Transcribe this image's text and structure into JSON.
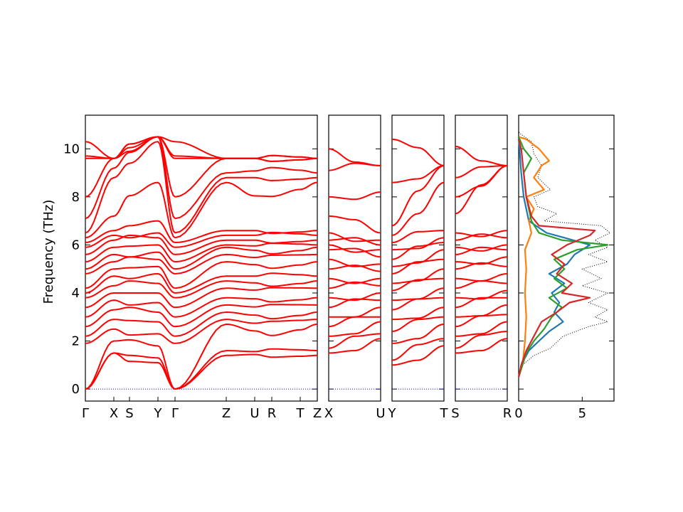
{
  "chart_data": [
    {
      "type": "line",
      "panel": "band-structure-1",
      "ylabel": "Frequency (THz)",
      "ylim": [
        -0.5,
        11.4
      ],
      "yticks": [
        0,
        2,
        4,
        6,
        8,
        10
      ],
      "xticks": [
        "Γ",
        "X",
        "S",
        "Y",
        "Γ",
        "Z",
        "U",
        "R",
        "T",
        "Z"
      ],
      "bands_at_gamma": [
        0,
        0,
        0,
        1.9,
        2.2,
        2.6,
        3.0,
        3.4,
        3.8,
        4.0,
        4.2,
        4.8,
        5.0,
        5.3,
        5.6,
        5.9,
        6.1,
        6.3,
        6.5,
        7.1,
        8.0,
        9.6,
        9.7,
        10.3
      ],
      "bands_at_x": [
        1.5,
        1.5,
        2.0,
        2.5,
        2.9,
        3.3,
        3.7,
        4.0,
        4.3,
        4.7,
        5.0,
        5.3,
        5.6,
        5.9,
        6.2,
        6.4,
        6.6,
        7.2,
        8.8,
        9.2,
        9.6
      ],
      "bands_at_y": [
        1.1,
        1.3,
        1.8,
        2.3,
        2.8,
        3.2,
        3.6,
        4.0,
        4.4,
        4.8,
        5.1,
        5.4,
        5.7,
        6.0,
        6.3,
        6.5,
        7.0,
        8.6,
        10.3,
        10.5
      ],
      "bands_at_z": [
        1.4,
        1.6,
        2.7,
        2.9,
        3.2,
        3.5,
        3.8,
        4.2,
        4.5,
        4.7,
        5.3,
        5.6,
        5.9,
        6.0,
        6.2,
        6.4,
        6.6,
        8.6,
        8.8,
        9.0,
        9.6
      ],
      "band_color": "#ff0000",
      "zero_line_color": "#0000ff"
    },
    {
      "type": "line",
      "panel": "band-structure-2",
      "xticks": [
        "X",
        "U"
      ],
      "bands_at_start": [
        1.5,
        1.7,
        2.2,
        2.6,
        3.0,
        3.4,
        3.8,
        4.2,
        4.6,
        5.0,
        5.4,
        5.8,
        6.0,
        6.2,
        6.5,
        7.2,
        8.0,
        9.1,
        10.0
      ],
      "bands_at_end": [
        2.1,
        2.3,
        2.8,
        3.0,
        3.4,
        3.7,
        4.0,
        4.3,
        4.6,
        4.9,
        5.2,
        5.5,
        5.8,
        6.0,
        6.2,
        6.5,
        8.2,
        9.3
      ],
      "band_color": "#ff0000"
    },
    {
      "type": "line",
      "panel": "band-structure-3",
      "xticks": [
        "Y",
        "T"
      ],
      "bands_at_start": [
        1.0,
        1.2,
        1.9,
        2.4,
        2.9,
        3.3,
        3.7,
        4.1,
        4.4,
        4.8,
        5.1,
        5.4,
        5.8,
        6.1,
        6.4,
        6.8,
        8.6,
        10.4
      ],
      "bands_at_end": [
        1.8,
        2.1,
        2.7,
        3.0,
        3.4,
        3.8,
        4.2,
        4.6,
        5.0,
        5.4,
        5.8,
        6.1,
        6.3,
        6.6,
        8.6,
        9.3
      ],
      "band_color": "#ff0000"
    },
    {
      "type": "line",
      "panel": "band-structure-4",
      "xticks": [
        "S",
        "R"
      ],
      "bands_at_start": [
        1.5,
        1.7,
        2.2,
        2.6,
        3.0,
        3.4,
        3.8,
        4.2,
        4.6,
        5.0,
        5.3,
        5.6,
        5.9,
        6.2,
        6.5,
        7.3,
        8.0,
        8.8,
        10.1
      ],
      "bands_at_end": [
        2.1,
        2.4,
        2.8,
        3.1,
        3.5,
        3.8,
        4.1,
        4.4,
        4.8,
        5.1,
        5.5,
        5.8,
        6.0,
        6.3,
        6.6,
        9.3
      ],
      "band_color": "#ff0000"
    },
    {
      "type": "line",
      "panel": "density-of-states",
      "xlim": [
        0,
        7.5
      ],
      "xticks": [
        "0",
        "5"
      ],
      "ylim": [
        -0.5,
        11.4
      ],
      "series": [
        {
          "color": "#000000",
          "style": "dotted",
          "points": [
            [
              0.0,
              0.5
            ],
            [
              0.3,
              1.0
            ],
            [
              1.2,
              1.4
            ],
            [
              2.5,
              1.7
            ],
            [
              3.5,
              2.2
            ],
            [
              5.5,
              2.6
            ],
            [
              7.0,
              2.8
            ],
            [
              6.0,
              3.0
            ],
            [
              7.0,
              3.3
            ],
            [
              5.5,
              3.6
            ],
            [
              7.0,
              4.0
            ],
            [
              5.0,
              4.3
            ],
            [
              6.5,
              4.6
            ],
            [
              5.0,
              5.0
            ],
            [
              7.0,
              5.3
            ],
            [
              5.5,
              5.6
            ],
            [
              7.0,
              5.9
            ],
            [
              6.0,
              6.2
            ],
            [
              7.2,
              6.5
            ],
            [
              6.5,
              6.8
            ],
            [
              2.0,
              7.0
            ],
            [
              3.0,
              7.3
            ],
            [
              1.5,
              7.6
            ],
            [
              1.2,
              8.0
            ],
            [
              2.5,
              8.3
            ],
            [
              1.5,
              8.8
            ],
            [
              1.8,
              9.3
            ],
            [
              1.2,
              9.8
            ],
            [
              1.0,
              10.3
            ],
            [
              0.2,
              10.6
            ],
            [
              0.0,
              10.7
            ]
          ]
        },
        {
          "color": "#1f77b4",
          "style": "solid",
          "points": [
            [
              0.0,
              0.5
            ],
            [
              0.4,
              1.2
            ],
            [
              0.8,
              1.6
            ],
            [
              1.6,
              2.0
            ],
            [
              2.4,
              2.4
            ],
            [
              3.5,
              2.8
            ],
            [
              2.8,
              3.2
            ],
            [
              3.2,
              3.6
            ],
            [
              2.6,
              4.0
            ],
            [
              3.6,
              4.4
            ],
            [
              2.4,
              4.8
            ],
            [
              3.8,
              5.2
            ],
            [
              4.4,
              5.6
            ],
            [
              5.6,
              6.0
            ],
            [
              3.6,
              6.3
            ],
            [
              2.2,
              6.5
            ],
            [
              0.8,
              7.0
            ],
            [
              0.4,
              8.0
            ],
            [
              0.2,
              9.0
            ],
            [
              0.0,
              10.5
            ]
          ]
        },
        {
          "color": "#ff7f0e",
          "style": "solid",
          "points": [
            [
              0.0,
              0.5
            ],
            [
              0.3,
              1.0
            ],
            [
              0.5,
              2.0
            ],
            [
              0.6,
              3.0
            ],
            [
              0.5,
              4.0
            ],
            [
              0.6,
              5.0
            ],
            [
              0.5,
              5.8
            ],
            [
              1.0,
              6.5
            ],
            [
              0.8,
              7.0
            ],
            [
              1.2,
              7.5
            ],
            [
              0.6,
              8.0
            ],
            [
              2.0,
              8.3
            ],
            [
              1.2,
              8.8
            ],
            [
              1.8,
              9.3
            ],
            [
              2.4,
              9.5
            ],
            [
              1.6,
              10.0
            ],
            [
              0.6,
              10.4
            ],
            [
              0.0,
              10.5
            ]
          ]
        },
        {
          "color": "#2ca02c",
          "style": "solid",
          "points": [
            [
              0.0,
              0.5
            ],
            [
              0.3,
              1.0
            ],
            [
              0.6,
              1.5
            ],
            [
              1.2,
              2.0
            ],
            [
              2.0,
              2.5
            ],
            [
              2.6,
              3.0
            ],
            [
              3.4,
              3.4
            ],
            [
              2.4,
              3.8
            ],
            [
              3.8,
              4.2
            ],
            [
              2.8,
              4.6
            ],
            [
              3.6,
              5.0
            ],
            [
              2.8,
              5.4
            ],
            [
              4.6,
              5.8
            ],
            [
              7.0,
              6.0
            ],
            [
              3.4,
              6.2
            ],
            [
              1.6,
              6.5
            ],
            [
              1.0,
              7.0
            ],
            [
              0.6,
              8.0
            ],
            [
              0.4,
              9.0
            ],
            [
              1.0,
              9.6
            ],
            [
              0.4,
              10.0
            ],
            [
              0.0,
              10.5
            ]
          ]
        },
        {
          "color": "#d62728",
          "style": "solid",
          "points": [
            [
              0.0,
              0.5
            ],
            [
              0.2,
              1.0
            ],
            [
              0.6,
              1.6
            ],
            [
              1.2,
              2.2
            ],
            [
              1.8,
              2.8
            ],
            [
              3.0,
              3.2
            ],
            [
              4.0,
              3.6
            ],
            [
              5.6,
              3.8
            ],
            [
              3.4,
              4.0
            ],
            [
              4.2,
              4.4
            ],
            [
              3.0,
              4.8
            ],
            [
              3.6,
              5.2
            ],
            [
              2.6,
              5.6
            ],
            [
              3.8,
              6.0
            ],
            [
              5.6,
              6.4
            ],
            [
              6.0,
              6.6
            ],
            [
              1.6,
              6.8
            ],
            [
              1.0,
              7.2
            ],
            [
              0.6,
              8.0
            ],
            [
              0.4,
              9.0
            ],
            [
              0.2,
              10.0
            ],
            [
              0.0,
              10.4
            ]
          ]
        }
      ]
    }
  ]
}
